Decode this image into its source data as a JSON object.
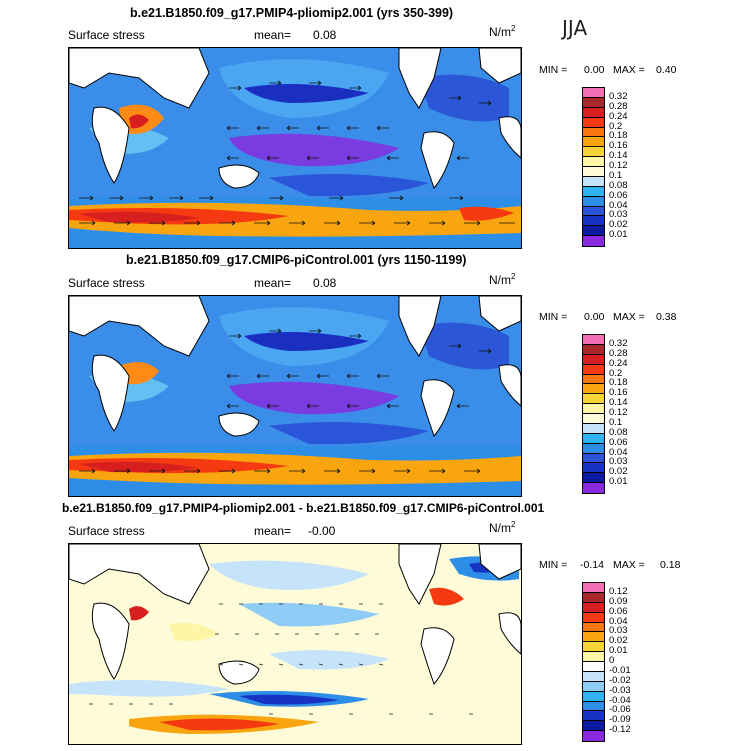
{
  "season": "JJA",
  "panels": [
    {
      "title": "b.e21.B1850.f09_g17.PMIP4-pliomip2.001 (yrs 350-399)",
      "variable": "Surface stress",
      "mean_label": "mean=",
      "mean_value": "0.08",
      "units": "N/m",
      "units_exp": "2",
      "min_label": "MIN =",
      "min_value": "0.00",
      "max_label": "MAX =",
      "max_value": "0.40",
      "colorbar": {
        "ticks": [
          "0.32",
          "0.28",
          "0.24",
          "0.2",
          "0.18",
          "0.16",
          "0.14",
          "0.12",
          "0.1",
          "0.08",
          "0.06",
          "0.04",
          "0.03",
          "0.02",
          "0.01"
        ],
        "colors": [
          "#f46fb4",
          "#a7282a",
          "#d81f1f",
          "#f53a12",
          "#f9770e",
          "#f9a50f",
          "#f8d33a",
          "#fdf6a6",
          "#fefbd8",
          "#c5e3fb",
          "#2fb3f2",
          "#2c8ee6",
          "#2a55d8",
          "#1633c4",
          "#0b1a9f",
          "#8a2be2"
        ]
      }
    },
    {
      "title": "b.e21.B1850.f09_g17.CMIP6-piControl.001 (yrs 1150-1199)",
      "variable": "Surface stress",
      "mean_label": "mean=",
      "mean_value": "0.08",
      "units": "N/m",
      "units_exp": "2",
      "min_label": "MIN =",
      "min_value": "0.00",
      "max_label": "MAX =",
      "max_value": "0.38",
      "colorbar": {
        "ticks": [
          "0.32",
          "0.28",
          "0.24",
          "0.2",
          "0.18",
          "0.16",
          "0.14",
          "0.12",
          "0.1",
          "0.08",
          "0.06",
          "0.04",
          "0.03",
          "0.02",
          "0.01"
        ],
        "colors": [
          "#f46fb4",
          "#a7282a",
          "#d81f1f",
          "#f53a12",
          "#f9770e",
          "#f9a50f",
          "#f8d33a",
          "#fdf6a6",
          "#fefbd8",
          "#c5e3fb",
          "#2fb3f2",
          "#2c8ee6",
          "#2a55d8",
          "#1633c4",
          "#0b1a9f",
          "#8a2be2"
        ]
      }
    },
    {
      "title": "b.e21.B1850.f09_g17.PMIP4-pliomip2.001 - b.e21.B1850.f09_g17.CMIP6-piControl.001",
      "variable": "Surface stress",
      "mean_label": "mean=",
      "mean_value": "-0.00",
      "units": "N/m",
      "units_exp": "2",
      "min_label": "MIN =",
      "min_value": "-0.14",
      "max_label": "MAX =",
      "max_value": "0.18",
      "colorbar": {
        "ticks": [
          "0.12",
          "0.09",
          "0.06",
          "0.04",
          "0.03",
          "0.02",
          "0.01",
          "0",
          "-0.01",
          "-0.02",
          "-0.03",
          "-0.04",
          "-0.06",
          "-0.09",
          "-0.12"
        ],
        "colors": [
          "#f46fb4",
          "#a7282a",
          "#d81f1f",
          "#f53a12",
          "#f9770e",
          "#f9a50f",
          "#f8d33a",
          "#fdf6a6",
          "#ffffff",
          "#c5e3fb",
          "#8fccf5",
          "#2fb3f2",
          "#2c8ee6",
          "#1633c4",
          "#0b1a9f",
          "#8a2be2"
        ]
      }
    }
  ]
}
